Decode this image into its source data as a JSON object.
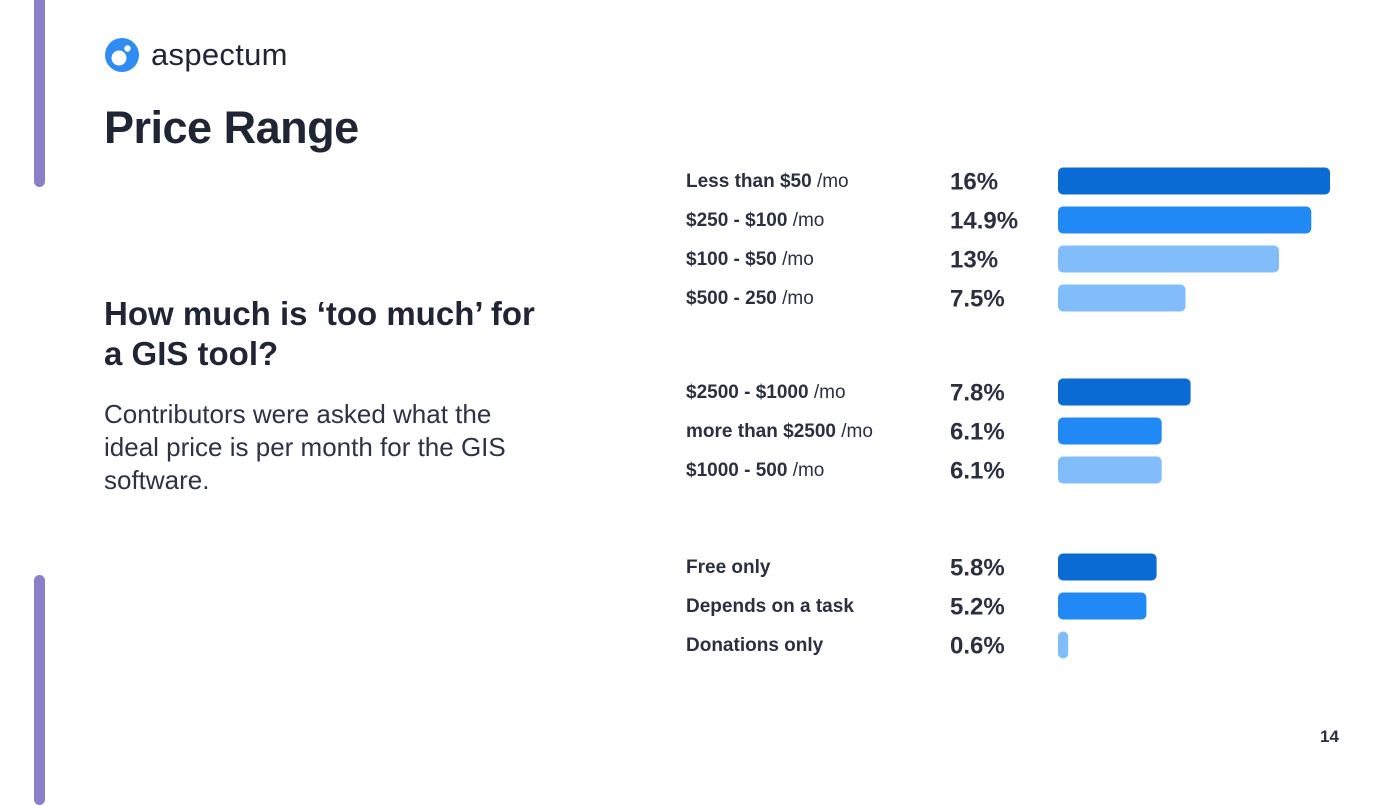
{
  "brand": {
    "name": "aspectum",
    "logo_icon": "aspectum-logo-icon",
    "logo_color": "#2f8cf5"
  },
  "slide": {
    "title": "Price Range",
    "question": "How much is ‘too much’ for a GIS tool?",
    "description": "Contributors were asked what the ideal price is per month for the GIS software.",
    "page_number": "14",
    "accent_color": "#8b7fc9"
  },
  "chart_data": {
    "type": "bar",
    "orientation": "horizontal",
    "title": "",
    "xlabel": "",
    "ylabel": "",
    "xlim": [
      0,
      16
    ],
    "grid": false,
    "legend": "none",
    "groups": [
      {
        "items": [
          {
            "label": "Less than $50",
            "suffix": " /mo",
            "value": 16,
            "display": "16%",
            "color": "#0a6bd4"
          },
          {
            "label": "$250 - $100",
            "suffix": " /mo",
            "value": 14.9,
            "display": "14.9%",
            "color": "#2189f5"
          },
          {
            "label": "$100 - $50",
            "suffix": " /mo",
            "value": 13,
            "display": "13%",
            "color": "#82bdfb"
          },
          {
            "label": "$500 - 250",
            "suffix": " /mo",
            "value": 7.5,
            "display": "7.5%",
            "color": "#82bdfb"
          }
        ]
      },
      {
        "items": [
          {
            "label": "$2500 - $1000",
            "suffix": " /mo",
            "value": 7.8,
            "display": "7.8%",
            "color": "#0a6bd4"
          },
          {
            "label": "more than $2500",
            "suffix": " /mo",
            "value": 6.1,
            "display": "6.1%",
            "color": "#2189f5"
          },
          {
            "label": "$1000 - 500",
            "suffix": " /mo",
            "value": 6.1,
            "display": "6.1%",
            "color": "#82bdfb"
          }
        ]
      },
      {
        "items": [
          {
            "label": "Free only",
            "suffix": "",
            "value": 5.8,
            "display": "5.8%",
            "color": "#0a6bd4"
          },
          {
            "label": "Depends on a task",
            "suffix": "",
            "value": 5.2,
            "display": "5.2%",
            "color": "#2189f5"
          },
          {
            "label": "Donations only",
            "suffix": "",
            "value": 0.6,
            "display": "0.6%",
            "color": "#82bdfb"
          }
        ]
      }
    ]
  }
}
